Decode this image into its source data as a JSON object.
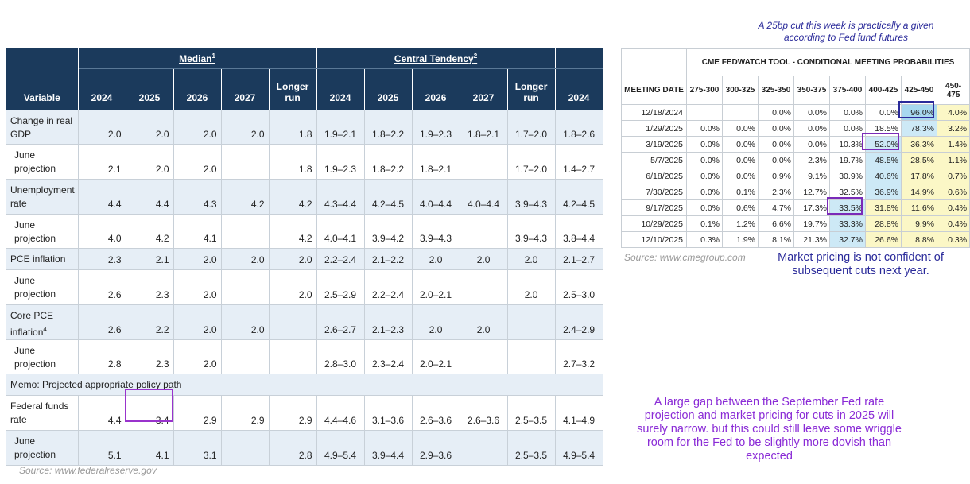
{
  "fed_table": {
    "group_headers": {
      "median": "Median",
      "median_note": "1",
      "central": "Central Tendency",
      "central_note": "2"
    },
    "col_headers": {
      "variable": "Variable",
      "c2024": "2024",
      "c2025": "2025",
      "c2026": "2026",
      "c2027": "2027",
      "longer_run": "Longer run",
      "t2024": "2024",
      "t2025": "2025",
      "t2026": "2026",
      "t2027": "2027",
      "t_longer_run": "Longer run",
      "x2024": "2024"
    },
    "rows": [
      {
        "label": "Change in real GDP",
        "cells": [
          "2.0",
          "2.0",
          "2.0",
          "2.0",
          "1.8",
          "1.9–2.1",
          "1.8–2.2",
          "1.9–2.3",
          "1.8–2.1",
          "1.7–2.0",
          "1.8–2.6"
        ]
      },
      {
        "label": "June projection",
        "cells": [
          "2.1",
          "2.0",
          "2.0",
          "",
          "1.8",
          "1.9–2.3",
          "1.8–2.2",
          "1.8–2.1",
          "",
          "1.7–2.0",
          "1.4–2.7"
        ]
      },
      {
        "label": "Unemployment rate",
        "cells": [
          "4.4",
          "4.4",
          "4.3",
          "4.2",
          "4.2",
          "4.3–4.4",
          "4.2–4.5",
          "4.0–4.4",
          "4.0–4.4",
          "3.9–4.3",
          "4.2–4.5"
        ]
      },
      {
        "label": "June projection",
        "cells": [
          "4.0",
          "4.2",
          "4.1",
          "",
          "4.2",
          "4.0–4.1",
          "3.9–4.2",
          "3.9–4.3",
          "",
          "3.9–4.3",
          "3.8–4.4"
        ]
      },
      {
        "label": "PCE inflation",
        "cells": [
          "2.3",
          "2.1",
          "2.0",
          "2.0",
          "2.0",
          "2.2–2.4",
          "2.1–2.2",
          "2.0",
          "2.0",
          "2.0",
          "2.1–2.7"
        ]
      },
      {
        "label": "June projection",
        "cells": [
          "2.6",
          "2.3",
          "2.0",
          "",
          "2.0",
          "2.5–2.9",
          "2.2–2.4",
          "2.0–2.1",
          "",
          "2.0",
          "2.5–3.0"
        ]
      },
      {
        "label": "Core PCE inflation",
        "label_note": "4",
        "cells": [
          "2.6",
          "2.2",
          "2.0",
          "2.0",
          "",
          "2.6–2.7",
          "2.1–2.3",
          "2.0",
          "2.0",
          "",
          "2.4–2.9"
        ]
      },
      {
        "label": "June projection",
        "cells": [
          "2.8",
          "2.3",
          "2.0",
          "",
          "",
          "2.8–3.0",
          "2.3–2.4",
          "2.0–2.1",
          "",
          "",
          "2.7–3.2"
        ]
      }
    ],
    "memo": "Memo: Projected appropriate policy path",
    "policy_rows": [
      {
        "label": "Federal funds rate",
        "cells": [
          "4.4",
          "3.4",
          "2.9",
          "2.9",
          "2.9",
          "4.4–4.6",
          "3.1–3.6",
          "2.6–3.6",
          "2.6–3.6",
          "2.5–3.5",
          "4.1–4.9"
        ]
      },
      {
        "label": "June projection",
        "cells": [
          "5.1",
          "4.1",
          "3.1",
          "",
          "2.8",
          "4.9–5.4",
          "3.9–4.4",
          "2.9–3.6",
          "",
          "2.5–3.5",
          "4.9–5.4"
        ]
      }
    ],
    "source": "Source: www.federalreserve.gov"
  },
  "cme_table": {
    "title": "CME FEDWATCH TOOL - CONDITIONAL MEETING PROBABILITIES",
    "headers": [
      "MEETING DATE",
      "275-300",
      "300-325",
      "325-350",
      "350-375",
      "375-400",
      "400-425",
      "425-450",
      "450-475"
    ],
    "rows": [
      {
        "date": "12/18/2024",
        "vals": [
          "",
          "",
          "0.0%",
          "0.0%",
          "0.0%",
          "0.0%",
          "96.0%",
          "4.0%"
        ]
      },
      {
        "date": "1/29/2025",
        "vals": [
          "0.0%",
          "0.0%",
          "0.0%",
          "0.0%",
          "0.0%",
          "18.5%",
          "78.3%",
          "3.2%"
        ]
      },
      {
        "date": "3/19/2025",
        "vals": [
          "0.0%",
          "0.0%",
          "0.0%",
          "0.0%",
          "10.3%",
          "52.0%",
          "36.3%",
          "1.4%"
        ]
      },
      {
        "date": "5/7/2025",
        "vals": [
          "0.0%",
          "0.0%",
          "0.0%",
          "2.3%",
          "19.7%",
          "48.5%",
          "28.5%",
          "1.1%"
        ]
      },
      {
        "date": "6/18/2025",
        "vals": [
          "0.0%",
          "0.0%",
          "0.9%",
          "9.1%",
          "30.9%",
          "40.6%",
          "17.8%",
          "0.7%"
        ]
      },
      {
        "date": "7/30/2025",
        "vals": [
          "0.0%",
          "0.1%",
          "2.3%",
          "12.7%",
          "32.5%",
          "36.9%",
          "14.9%",
          "0.6%"
        ]
      },
      {
        "date": "9/17/2025",
        "vals": [
          "0.0%",
          "0.6%",
          "4.7%",
          "17.3%",
          "33.5%",
          "31.8%",
          "11.6%",
          "0.4%"
        ]
      },
      {
        "date": "10/29/2025",
        "vals": [
          "0.1%",
          "1.2%",
          "6.6%",
          "19.7%",
          "33.3%",
          "28.8%",
          "9.9%",
          "0.4%"
        ]
      },
      {
        "date": "12/10/2025",
        "vals": [
          "0.3%",
          "1.9%",
          "8.1%",
          "21.3%",
          "32.7%",
          "26.6%",
          "8.8%",
          "0.3%"
        ]
      }
    ],
    "source": "Source: www.cmegroup.com"
  },
  "annotations": {
    "top": "A 25bp cut this week is practically a given according to Fed fund futures",
    "middle": "Market pricing is not confident of subsequent cuts next year.",
    "bottom": "A large gap between the September Fed rate projection and market pricing for cuts in 2025 will surely narrow. but this could still leave some wriggle room for the Fed to be slightly more dovish than expected"
  },
  "colors": {
    "header_navy": "#1b3a5c",
    "highlight_purple": "#9933cc",
    "note_navy": "#2a2a9a",
    "note_purple": "#8a2bd6",
    "cme_blue": "#cde9f6",
    "cme_yellow": "#fbf7c6"
  },
  "chart_data": [
    {
      "type": "table",
      "title": "",
      "columns": [
        "Variable",
        "Median 2024",
        "Median 2025",
        "Median 2026",
        "Median 2027",
        "Median Longer run",
        "Central Tendency 2024",
        "Central Tendency 2025",
        "Central Tendency 2026",
        "Central Tendency 2027",
        "Central Tendency Longer run",
        "2024"
      ],
      "rows": [
        [
          "Change in real GDP",
          "2.0",
          "2.0",
          "2.0",
          "2.0",
          "1.8",
          "1.9–2.1",
          "1.8–2.2",
          "1.9–2.3",
          "1.8–2.1",
          "1.7–2.0",
          "1.8–2.6"
        ],
        [
          "June projection",
          "2.1",
          "2.0",
          "2.0",
          "",
          "1.8",
          "1.9–2.3",
          "1.8–2.2",
          "1.8–2.1",
          "",
          "1.7–2.0",
          "1.4–2.7"
        ],
        [
          "Unemployment rate",
          "4.4",
          "4.4",
          "4.3",
          "4.2",
          "4.2",
          "4.3–4.4",
          "4.2–4.5",
          "4.0–4.4",
          "4.0–4.4",
          "3.9–4.3",
          "4.2–4.5"
        ],
        [
          "June projection",
          "4.0",
          "4.2",
          "4.1",
          "",
          "4.2",
          "4.0–4.1",
          "3.9–4.2",
          "3.9–4.3",
          "",
          "3.9–4.3",
          "3.8–4.4"
        ],
        [
          "PCE inflation",
          "2.3",
          "2.1",
          "2.0",
          "2.0",
          "2.0",
          "2.2–2.4",
          "2.1–2.2",
          "2.0",
          "2.0",
          "2.0",
          "2.1–2.7"
        ],
        [
          "June projection",
          "2.6",
          "2.3",
          "2.0",
          "",
          "2.0",
          "2.5–2.9",
          "2.2–2.4",
          "2.0–2.1",
          "",
          "2.0",
          "2.5–3.0"
        ],
        [
          "Core PCE inflation",
          "2.6",
          "2.2",
          "2.0",
          "2.0",
          "",
          "2.6–2.7",
          "2.1–2.3",
          "2.0",
          "2.0",
          "",
          "2.4–2.9"
        ],
        [
          "June projection",
          "2.8",
          "2.3",
          "2.0",
          "",
          "",
          "2.8–3.0",
          "2.3–2.4",
          "2.0–2.1",
          "",
          "",
          "2.7–3.2"
        ],
        [
          "Federal funds rate",
          "4.4",
          "3.4",
          "2.9",
          "2.9",
          "2.9",
          "4.4–4.6",
          "3.1–3.6",
          "2.6–3.6",
          "2.6–3.6",
          "2.5–3.5",
          "4.1–4.9"
        ],
        [
          "June projection",
          "5.1",
          "4.1",
          "3.1",
          "",
          "2.8",
          "4.9–5.4",
          "3.9–4.4",
          "2.9–3.6",
          "",
          "2.5–3.5",
          "4.9–5.4"
        ]
      ]
    },
    {
      "type": "table",
      "title": "CME FEDWATCH TOOL - CONDITIONAL MEETING PROBABILITIES",
      "columns": [
        "MEETING DATE",
        "275-300",
        "300-325",
        "325-350",
        "350-375",
        "375-400",
        "400-425",
        "425-450",
        "450-475"
      ],
      "rows": [
        [
          "12/18/2024",
          "",
          "",
          "0.0%",
          "0.0%",
          "0.0%",
          "0.0%",
          "96.0%",
          "4.0%"
        ],
        [
          "1/29/2025",
          "0.0%",
          "0.0%",
          "0.0%",
          "0.0%",
          "0.0%",
          "18.5%",
          "78.3%",
          "3.2%"
        ],
        [
          "3/19/2025",
          "0.0%",
          "0.0%",
          "0.0%",
          "0.0%",
          "10.3%",
          "52.0%",
          "36.3%",
          "1.4%"
        ],
        [
          "5/7/2025",
          "0.0%",
          "0.0%",
          "0.0%",
          "2.3%",
          "19.7%",
          "48.5%",
          "28.5%",
          "1.1%"
        ],
        [
          "6/18/2025",
          "0.0%",
          "0.0%",
          "0.9%",
          "9.1%",
          "30.9%",
          "40.6%",
          "17.8%",
          "0.7%"
        ],
        [
          "7/30/2025",
          "0.0%",
          "0.1%",
          "2.3%",
          "12.7%",
          "32.5%",
          "36.9%",
          "14.9%",
          "0.6%"
        ],
        [
          "9/17/2025",
          "0.0%",
          "0.6%",
          "4.7%",
          "17.3%",
          "33.5%",
          "31.8%",
          "11.6%",
          "0.4%"
        ],
        [
          "10/29/2025",
          "0.1%",
          "1.2%",
          "6.6%",
          "19.7%",
          "33.3%",
          "28.8%",
          "9.9%",
          "0.4%"
        ],
        [
          "12/10/2025",
          "0.3%",
          "1.9%",
          "8.1%",
          "21.3%",
          "32.7%",
          "26.6%",
          "8.8%",
          "0.3%"
        ]
      ]
    }
  ]
}
